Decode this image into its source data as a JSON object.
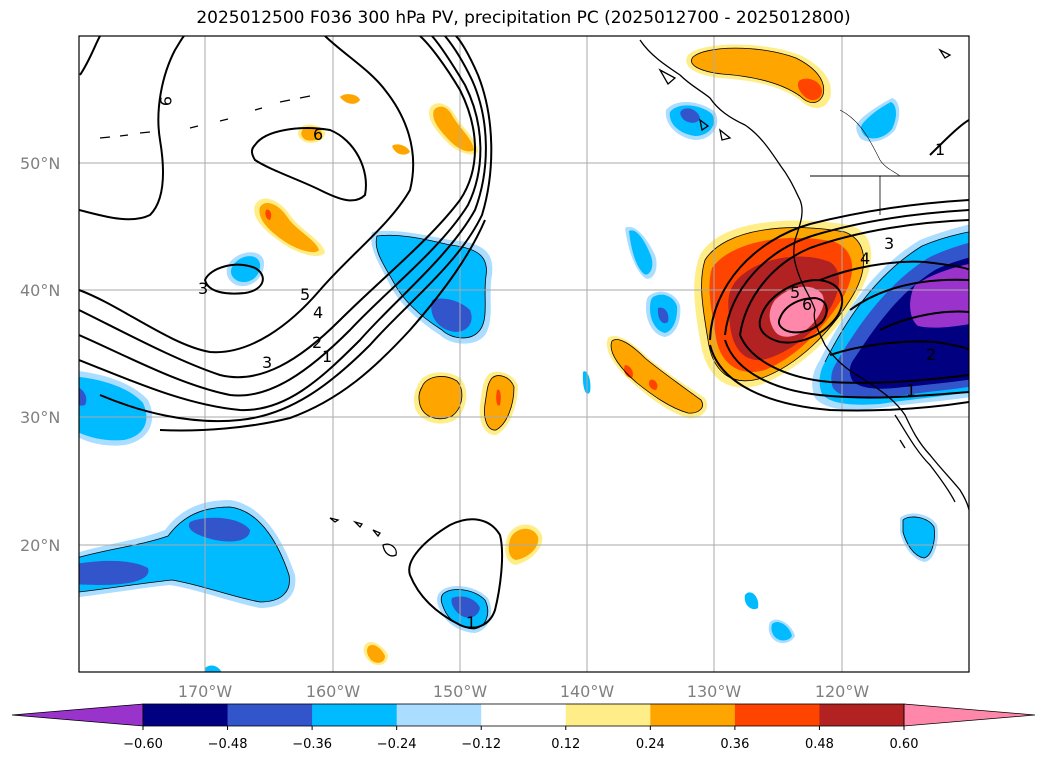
{
  "title": "2025012500 F036 300 hPa PV, precipitation PC (2025012700 - 2025012800)",
  "lat_labels": [
    "50°N",
    "40°N",
    "30°N",
    "20°N"
  ],
  "lon_labels": [
    "170°W",
    "160°W",
    "150°W",
    "140°W",
    "130°W",
    "120°W"
  ],
  "colorbar": {
    "ticks": [
      "−0.60",
      "−0.48",
      "−0.36",
      "−0.24",
      "−0.12",
      "0.12",
      "0.24",
      "0.36",
      "0.48",
      "0.60"
    ],
    "colors": [
      "#9933cc",
      "#000080",
      "#3355cc",
      "#00bbff",
      "#aaddff",
      "#ffffff",
      "#ffee88",
      "#ffa500",
      "#ff4400",
      "#b22222",
      "#ff88aa",
      "#ff88aa"
    ]
  },
  "contour_labels": {
    "nw_9": "9",
    "nw_6": "6",
    "nw_5": "5",
    "nw_4": "4",
    "nw_3": "3",
    "nw_2": "2",
    "nw_1": "1",
    "small_3": "3",
    "e_3": "3",
    "e_4": "4",
    "e_5": "5",
    "e_6": "6",
    "e_1_top": "1",
    "e_1_bot": "1",
    "e_2": "2",
    "hawaii_1": "1"
  },
  "colors": {
    "purple": "#9933cc",
    "navy": "#000080",
    "blue": "#3355cc",
    "cyan": "#00bbff",
    "lightblue": "#aaddff",
    "yellow": "#ffee88",
    "orange": "#ffa500",
    "redorange": "#ff4400",
    "darkred": "#b22222",
    "pink": "#ff88aa"
  }
}
